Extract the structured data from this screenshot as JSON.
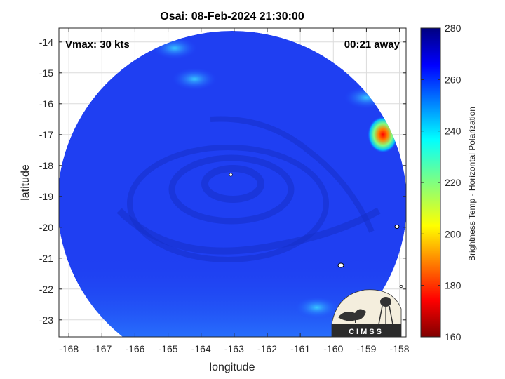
{
  "chart_data": {
    "type": "heatmap",
    "title": "Osai: 08-Feb-2024 21:30:00",
    "xlabel": "longitude",
    "ylabel": "latitude",
    "xlim": [
      -168.3,
      -157.8
    ],
    "ylim": [
      -23.55,
      -13.55
    ],
    "xticks": [
      -168,
      -167,
      -166,
      -165,
      -164,
      -163,
      -162,
      -161,
      -160,
      -159,
      -158
    ],
    "yticks": [
      -14,
      -15,
      -16,
      -17,
      -18,
      -19,
      -20,
      -21,
      -22,
      -23
    ],
    "grid": true,
    "annotations": {
      "top_left": "Vmax: 30 kts",
      "top_right": "00:21 away"
    },
    "colorbar": {
      "label": "Brightness Temp - Horizontal Polarization",
      "min": 160,
      "max": 280,
      "ticks": [
        280,
        260,
        240,
        220,
        200,
        180,
        160
      ],
      "colormap": "jet"
    },
    "swath": {
      "center_lon": -163,
      "center_lat": -18.5,
      "background_value": 264,
      "storm_center": [
        -163.1,
        -18.3
      ],
      "warm_region": {
        "lon": -158.5,
        "lat": -17.0,
        "min_value": 170
      },
      "cool_patches": [
        {
          "lon": -164.8,
          "lat": -14.2,
          "value": 250
        },
        {
          "lon": -164.2,
          "lat": -15.2,
          "value": 252
        },
        {
          "lon": -159.0,
          "lat": -15.8,
          "value": 248
        },
        {
          "lon": -160.5,
          "lat": -22.6,
          "value": 254
        }
      ]
    }
  },
  "logo": {
    "text": "CIMSS"
  }
}
